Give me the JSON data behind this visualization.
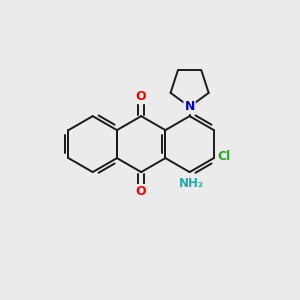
{
  "bg_color": "#ebebeb",
  "bond_color": "#1a1a1a",
  "atom_colors": {
    "O": "#ff0000",
    "N": "#0000cc",
    "Cl": "#22aa22",
    "NH2": "#22aaaa"
  },
  "lw": 1.4,
  "bl": 1.0
}
